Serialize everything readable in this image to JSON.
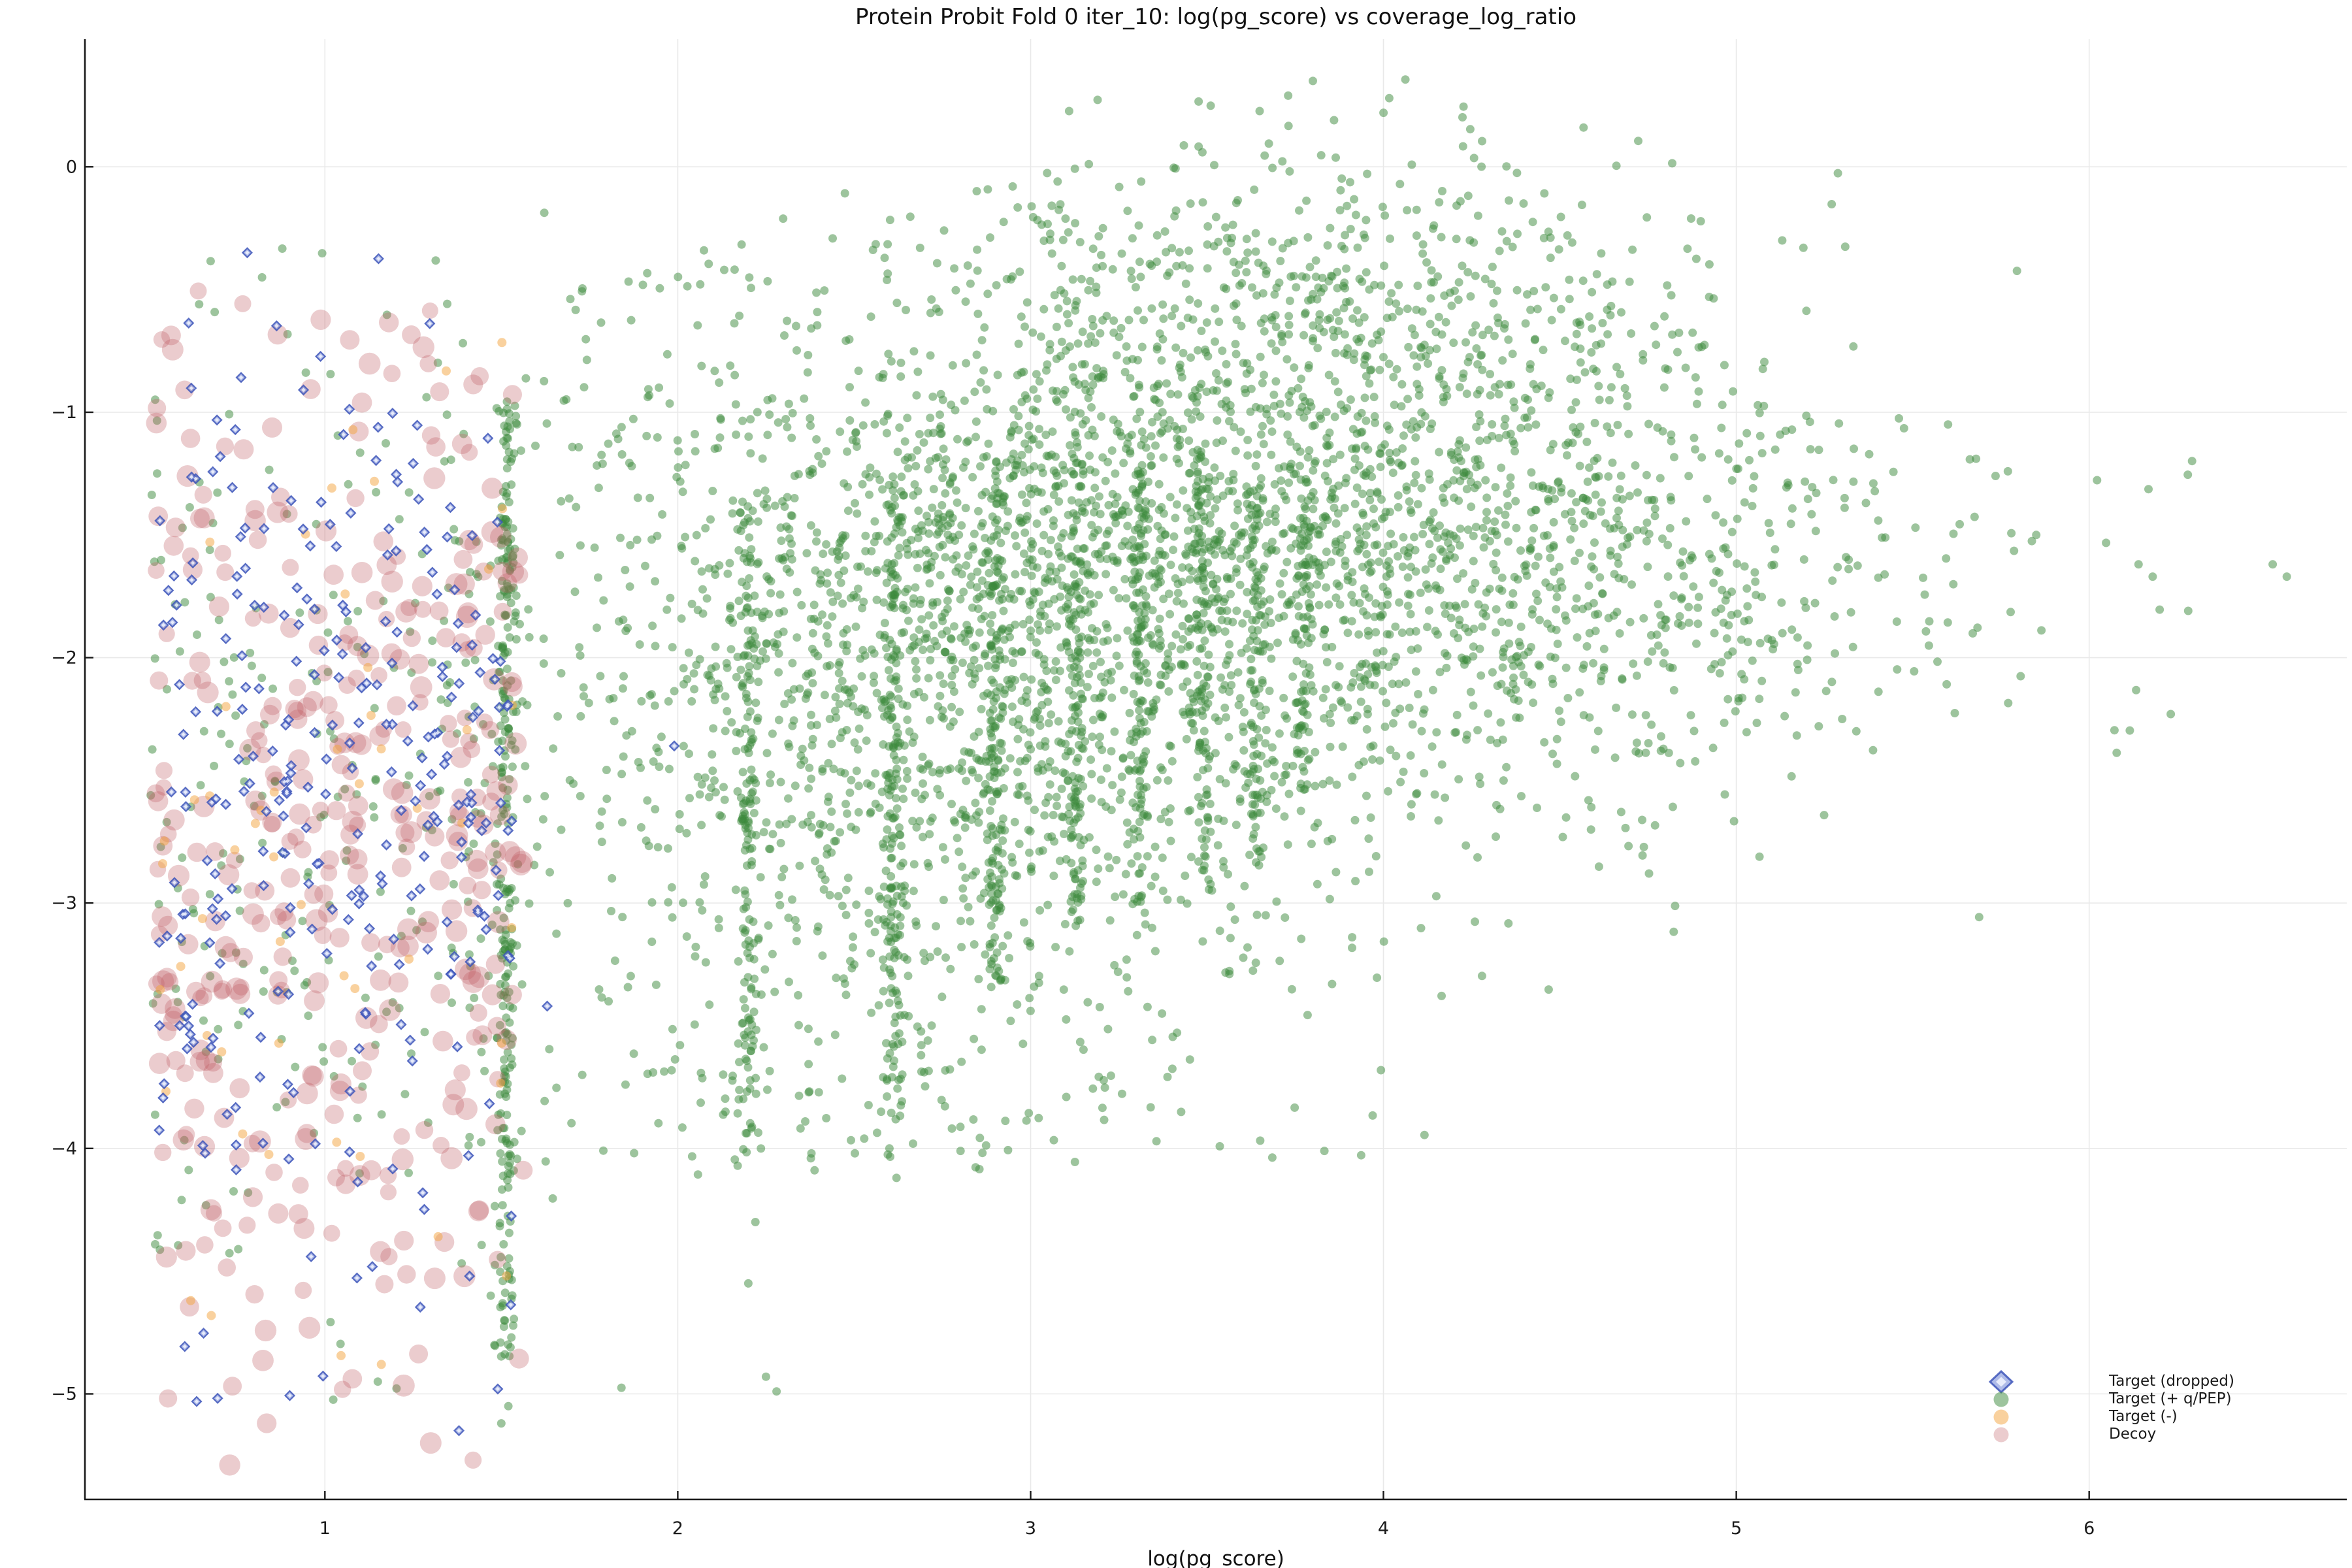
{
  "chart": {
    "title": "Protein Probit Fold 0 iter_10: log(pg_score) vs coverage_log_ratio",
    "xlabel": "log(pg_score)"
  },
  "chart_data": {
    "type": "scatter",
    "title": "Protein Probit Fold 0 iter_10: log(pg_score) vs coverage_log_ratio",
    "xlabel": "log(pg_score)",
    "ylabel": "",
    "xlim": [
      0.32,
      6.73
    ],
    "ylim": [
      -5.43,
      0.52
    ],
    "grid": true,
    "grid_color": "#e9e9e9",
    "spine_color": "#1a1a1a",
    "tick_direction": "in",
    "legend_position": "lower right",
    "x_ticks": [
      {
        "v": 1,
        "label": "1"
      },
      {
        "v": 2,
        "label": "2"
      },
      {
        "v": 3,
        "label": "3"
      },
      {
        "v": 4,
        "label": "4"
      },
      {
        "v": 5,
        "label": "5"
      },
      {
        "v": 6,
        "label": "6"
      }
    ],
    "y_ticks": [
      {
        "v": 0,
        "label": "0"
      },
      {
        "v": -1,
        "label": "−1"
      },
      {
        "v": -2,
        "label": "−2"
      },
      {
        "v": -3,
        "label": "−3"
      },
      {
        "v": -4,
        "label": "−4"
      },
      {
        "v": -5,
        "label": "−5"
      }
    ],
    "series": [
      {
        "name": "Target (dropped)",
        "marker": "diamond",
        "fill": "rgba(110,132,214,0.55)",
        "stroke": "rgba(62,86,186,0.85)",
        "inner_fill": "rgba(246,249,255,0.8)",
        "size": 7,
        "generator": {
          "components": [
            {
              "type": "band",
              "n": 285,
              "x0": 0.53,
              "x1": 1.53,
              "ymu": -2.55,
              "ysd": 1.05,
              "ymin": -5.15,
              "ymax": -0.33
            }
          ],
          "extras": [
            [
              1.99,
              -2.36
            ],
            [
              1.63,
              -3.42
            ],
            [
              1.49,
              -4.98
            ],
            [
              1.38,
              -5.15
            ],
            [
              0.78,
              -0.35
            ],
            [
              1.41,
              -4.52
            ]
          ]
        }
      },
      {
        "name": "Target (+ q/PEP)",
        "marker": "circle",
        "fill": "rgba(60,138,60,0.5)",
        "size": 6.5,
        "generator": {
          "components": [
            {
              "type": "blob",
              "n": 850,
              "cx": 2.55,
              "cy": -1.95,
              "sx": 0.42,
              "sy": 0.6
            },
            {
              "type": "blob",
              "n": 1050,
              "cx": 3.2,
              "cy": -1.65,
              "sx": 0.45,
              "sy": 0.65
            },
            {
              "type": "blob",
              "n": 900,
              "cx": 3.85,
              "cy": -1.45,
              "sx": 0.45,
              "sy": 0.62
            },
            {
              "type": "blob",
              "n": 480,
              "cx": 4.4,
              "cy": -1.55,
              "sx": 0.38,
              "sy": 0.55
            },
            {
              "type": "blob",
              "n": 300,
              "cx": 3.7,
              "cy": -0.45,
              "sx": 0.6,
              "sy": 0.3
            },
            {
              "type": "blob",
              "n": 200,
              "cx": 4.9,
              "cy": -1.7,
              "sx": 0.33,
              "sy": 0.5
            },
            {
              "type": "band",
              "n": 60,
              "x0": 5.0,
              "x1": 6.3,
              "ymu": -1.6,
              "ysd": 0.5
            },
            {
              "type": "band",
              "n": 55,
              "x0": 1.55,
              "x1": 2.3,
              "ymu": -0.9,
              "ysd": 0.45,
              "ymin": -2.2,
              "ymax": -0.2
            },
            {
              "type": "band",
              "n": 45,
              "x0": 1.56,
              "x1": 2.15,
              "ymu": -2.4,
              "ysd": 0.9
            },
            {
              "type": "band",
              "n": 270,
              "x0": 0.5,
              "x1": 1.52,
              "ymu": -2.7,
              "ysd": 1.1,
              "ymin": -5.2,
              "ymax": -0.2
            },
            {
              "type": "strip",
              "n": 340,
              "xmu": 2.75,
              "xsd": 0.62,
              "y0": -2.4,
              "y1": -4.1
            },
            {
              "type": "col",
              "n": 280,
              "x": 1.515,
              "j": 0.013,
              "y0": -0.95,
              "y1": -4.85
            },
            {
              "type": "col",
              "n": 150,
              "x": 2.2,
              "j": 0.013,
              "y0": -1.35,
              "y1": -3.95
            },
            {
              "type": "col",
              "n": 150,
              "x": 2.61,
              "j": 0.013,
              "y0": -1.25,
              "y1": -3.9
            },
            {
              "type": "col",
              "n": 140,
              "x": 2.9,
              "j": 0.013,
              "y0": -1.2,
              "y1": -3.35
            },
            {
              "type": "col",
              "n": 120,
              "x": 3.13,
              "j": 0.013,
              "y0": -1.15,
              "y1": -3.2
            },
            {
              "type": "col",
              "n": 110,
              "x": 3.31,
              "j": 0.013,
              "y0": -1.2,
              "y1": -3.0
            },
            {
              "type": "col",
              "n": 95,
              "x": 3.49,
              "j": 0.013,
              "y0": -1.25,
              "y1": -2.95
            },
            {
              "type": "col",
              "n": 80,
              "x": 3.64,
              "j": 0.013,
              "y0": -1.3,
              "y1": -2.85
            },
            {
              "type": "col",
              "n": 60,
              "x": 3.78,
              "j": 0.014,
              "y0": -1.35,
              "y1": -2.65
            }
          ],
          "extras": [
            [
              3.8,
              0.35
            ],
            [
              3.73,
              0.29
            ],
            [
              3.86,
              0.19
            ],
            [
              2.25,
              -4.93
            ],
            [
              2.28,
              -4.99
            ],
            [
              1.52,
              -5.05
            ],
            [
              1.5,
              -5.12
            ],
            [
              1.47,
              -4.6
            ],
            [
              2.62,
              -4.12
            ],
            [
              5.13,
              -0.3
            ],
            [
              5.19,
              -0.33
            ],
            [
              6.14,
              -1.62
            ],
            [
              6.18,
              -1.67
            ],
            [
              6.52,
              -1.62
            ],
            [
              6.56,
              -1.67
            ],
            [
              5.3,
              -2.25
            ],
            [
              5.34,
              -2.3
            ],
            [
              2.2,
              -4.55
            ],
            [
              2.22,
              -4.3
            ],
            [
              1.15,
              -4.95
            ],
            [
              2.6,
              -4.0
            ],
            [
              5.6,
              -1.05
            ],
            [
              5.85,
              -1.5
            ]
          ]
        }
      },
      {
        "name": "Target (-)",
        "marker": "circle",
        "fill": "rgba(243,164,62,0.5)",
        "size": 7,
        "generator": {
          "components": [
            {
              "type": "band",
              "n": 52,
              "x0": 0.53,
              "x1": 1.55,
              "ymu": -2.55,
              "ysd": 1.25,
              "ymin": -4.88,
              "ymax": -0.5
            }
          ],
          "extras": [
            [
              0.62,
              -4.62
            ],
            [
              1.16,
              -4.88
            ]
          ]
        }
      },
      {
        "name": "Decoy",
        "marker": "circle",
        "fill": "rgba(193,97,102,0.32)",
        "size": [
          12.5,
          17
        ],
        "generator": {
          "components": [
            {
              "type": "band",
              "n": 395,
              "x0": 0.52,
              "x1": 1.565,
              "ymu": -2.75,
              "ysd": 1.15,
              "ymin": -5.3,
              "ymax": -0.45
            }
          ],
          "extras": [
            [
              1.42,
              -5.27
            ],
            [
              1.3,
              -5.2
            ]
          ]
        }
      }
    ]
  }
}
